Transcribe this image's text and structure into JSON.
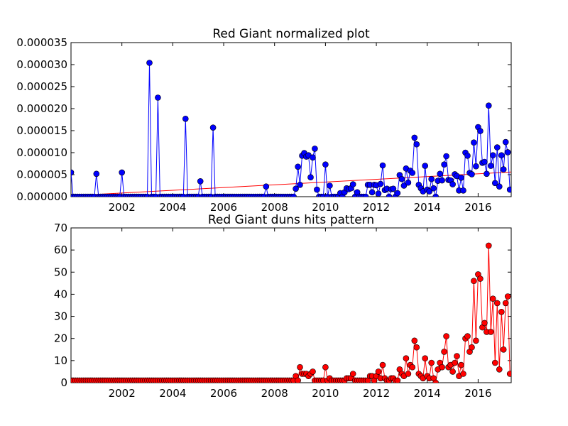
{
  "chart_data": [
    {
      "type": "line",
      "title": "Red Giant normalized plot",
      "xlabel": "",
      "ylabel": "",
      "xlim": [
        2000.0,
        2017.3
      ],
      "ylim": [
        0,
        3.5e-05
      ],
      "x_ticks": [
        2002,
        2004,
        2006,
        2008,
        2010,
        2012,
        2014,
        2016
      ],
      "x_tick_labels": [
        "2002",
        "2004",
        "2006",
        "2008",
        "2010",
        "2012",
        "2014",
        "2016"
      ],
      "y_ticks": [
        0,
        5e-06,
        1e-05,
        1.5e-05,
        2e-05,
        2.5e-05,
        3e-05,
        3.5e-05
      ],
      "y_tick_labels": [
        "0.000000",
        "0.000005",
        "0.000010",
        "0.000015",
        "0.000020",
        "0.000025",
        "0.000030",
        "0.000035"
      ],
      "grid": false,
      "colors": {
        "series": "#0000ff",
        "trend": "#ff0000",
        "marker_edge": "#000000"
      },
      "trend_line": {
        "x": [
          2000.0,
          2017.3
        ],
        "y": [
          2e-07,
          5.6e-06
        ]
      },
      "series": [
        {
          "x": [
            2000.0,
            2001.0,
            2002.0,
            2003.08,
            2003.42,
            2004.5,
            2005.08,
            2005.58,
            2007.67,
            2008.83,
            2008.92,
            2009.0,
            2009.08,
            2009.17,
            2009.25,
            2009.33,
            2009.42,
            2009.5,
            2009.58,
            2009.67,
            2010.0,
            2010.17,
            2010.58,
            2010.75,
            2010.83,
            2010.92,
            2011.0,
            2011.08,
            2011.25,
            2011.67,
            2011.75,
            2011.83,
            2011.92,
            2012.0,
            2012.08,
            2012.17,
            2012.25,
            2012.33,
            2012.42,
            2012.58,
            2012.67,
            2012.83,
            2012.92,
            2013.0,
            2013.08,
            2013.17,
            2013.25,
            2013.33,
            2013.42,
            2013.5,
            2013.58,
            2013.67,
            2013.75,
            2013.83,
            2013.92,
            2014.0,
            2014.08,
            2014.17,
            2014.25,
            2014.33,
            2014.42,
            2014.5,
            2014.58,
            2014.67,
            2014.75,
            2014.83,
            2014.92,
            2015.0,
            2015.08,
            2015.17,
            2015.25,
            2015.33,
            2015.42,
            2015.5,
            2015.58,
            2015.67,
            2015.75,
            2015.83,
            2015.92,
            2016.0,
            2016.08,
            2016.17,
            2016.25,
            2016.33,
            2016.42,
            2016.5,
            2016.58,
            2016.67,
            2016.75,
            2016.83,
            2016.92,
            2017.0,
            2017.08,
            2017.17,
            2017.25,
            2017.3
          ],
          "y": [
            5.5e-06,
            5.2e-06,
            5.5e-06,
            3.04e-05,
            2.25e-05,
            1.77e-05,
            3.5e-06,
            1.57e-05,
            2.3e-06,
            1.8e-06,
            6.8e-06,
            2.7e-06,
            9.3e-06,
            9.9e-06,
            9.1e-06,
            9.4e-06,
            4.4e-06,
            8.9e-06,
            1.09e-05,
            1.6e-06,
            7.3e-06,
            2.5e-06,
            8e-07,
            1e-06,
            1.9e-06,
            1.7e-06,
            1.9e-06,
            2.8e-06,
            1e-06,
            2.7e-06,
            2.7e-06,
            1e-06,
            2.7e-06,
            2.6e-06,
            7e-07,
            2.9e-06,
            7.1e-06,
            1.5e-06,
            1.8e-06,
            1.7e-06,
            1.8e-06,
            8e-07,
            4.9e-06,
            4e-06,
            2.5e-06,
            6.4e-06,
            3.2e-06,
            5.9e-06,
            5.4e-06,
            1.34e-05,
            1.19e-05,
            2.7e-06,
            1.9e-06,
            1.2e-06,
            7e-06,
            1.6e-06,
            1.2e-06,
            4e-06,
            1.9e-06,
            0.0,
            3.6e-06,
            5.2e-06,
            3.7e-06,
            7.3e-06,
            9.2e-06,
            3.8e-06,
            3.7e-06,
            2.8e-06,
            5.1e-06,
            4.7e-06,
            1.4e-06,
            4.3e-06,
            1.4e-06,
            1e-05,
            9.3e-06,
            5.4e-06,
            5.1e-06,
            1.23e-05,
            6.9e-06,
            1.58e-05,
            1.49e-05,
            7.7e-06,
            7.9e-06,
            5.2e-06,
            2.07e-05,
            7e-06,
            9.4e-06,
            3.1e-06,
            1.12e-05,
            2.3e-06,
            9.4e-06,
            6.2e-06,
            1.24e-05,
            1.01e-05,
            1.6e-06,
            1.5e-06
          ]
        }
      ]
    },
    {
      "type": "line",
      "title": "Red Giant duns hits pattern",
      "xlabel": "",
      "ylabel": "",
      "xlim": [
        2000.0,
        2017.3
      ],
      "ylim": [
        0,
        70
      ],
      "x_ticks": [
        2002,
        2004,
        2006,
        2008,
        2010,
        2012,
        2014,
        2016
      ],
      "x_tick_labels": [
        "2002",
        "2004",
        "2006",
        "2008",
        "2010",
        "2012",
        "2014",
        "2016"
      ],
      "y_ticks": [
        0,
        10,
        20,
        30,
        40,
        50,
        60,
        70
      ],
      "y_tick_labels": [
        "0",
        "10",
        "20",
        "30",
        "40",
        "50",
        "60",
        "70"
      ],
      "grid": false,
      "colors": {
        "series": "#ff0000",
        "marker_edge": "#000000"
      },
      "series": [
        {
          "x": [
            2000.0,
            2001.0,
            2002.0,
            2003.08,
            2003.42,
            2004.5,
            2005.08,
            2005.58,
            2007.67,
            2008.75,
            2008.83,
            2008.92,
            2009.0,
            2009.08,
            2009.17,
            2009.25,
            2009.33,
            2009.42,
            2009.5,
            2009.58,
            2009.67,
            2010.0,
            2010.17,
            2010.58,
            2010.75,
            2010.83,
            2010.92,
            2011.0,
            2011.08,
            2011.25,
            2011.67,
            2011.75,
            2011.83,
            2011.92,
            2012.0,
            2012.08,
            2012.17,
            2012.25,
            2012.33,
            2012.42,
            2012.58,
            2012.67,
            2012.83,
            2012.92,
            2013.0,
            2013.08,
            2013.17,
            2013.25,
            2013.33,
            2013.42,
            2013.5,
            2013.58,
            2013.67,
            2013.75,
            2013.83,
            2013.92,
            2014.0,
            2014.08,
            2014.17,
            2014.25,
            2014.33,
            2014.42,
            2014.5,
            2014.58,
            2014.67,
            2014.75,
            2014.83,
            2014.92,
            2015.0,
            2015.08,
            2015.17,
            2015.25,
            2015.33,
            2015.42,
            2015.5,
            2015.58,
            2015.67,
            2015.75,
            2015.83,
            2015.92,
            2016.0,
            2016.08,
            2016.17,
            2016.25,
            2016.33,
            2016.42,
            2016.5,
            2016.58,
            2016.67,
            2016.75,
            2016.83,
            2016.92,
            2017.0,
            2017.08,
            2017.17,
            2017.25,
            2017.3
          ],
          "y": [
            1,
            1,
            1,
            1,
            1,
            1,
            1,
            1,
            1,
            1,
            3,
            1,
            7,
            4,
            4,
            4,
            3,
            4,
            5,
            1,
            1,
            7,
            2,
            1,
            1,
            2,
            2,
            2,
            4,
            1,
            1,
            3,
            3,
            1,
            3,
            5,
            2,
            8,
            2,
            1,
            2,
            2,
            1,
            6,
            4,
            3,
            11,
            4,
            8,
            7,
            19,
            16,
            4,
            3,
            2,
            11,
            3,
            2,
            9,
            2,
            0,
            6,
            9,
            7,
            14,
            21,
            7,
            8,
            5,
            9,
            12,
            3,
            8,
            4,
            20,
            21,
            14,
            16,
            46,
            19,
            49,
            47,
            25,
            27,
            23,
            62,
            23,
            38,
            9,
            36,
            6,
            32,
            15,
            36,
            39,
            4,
            2
          ]
        }
      ]
    }
  ]
}
